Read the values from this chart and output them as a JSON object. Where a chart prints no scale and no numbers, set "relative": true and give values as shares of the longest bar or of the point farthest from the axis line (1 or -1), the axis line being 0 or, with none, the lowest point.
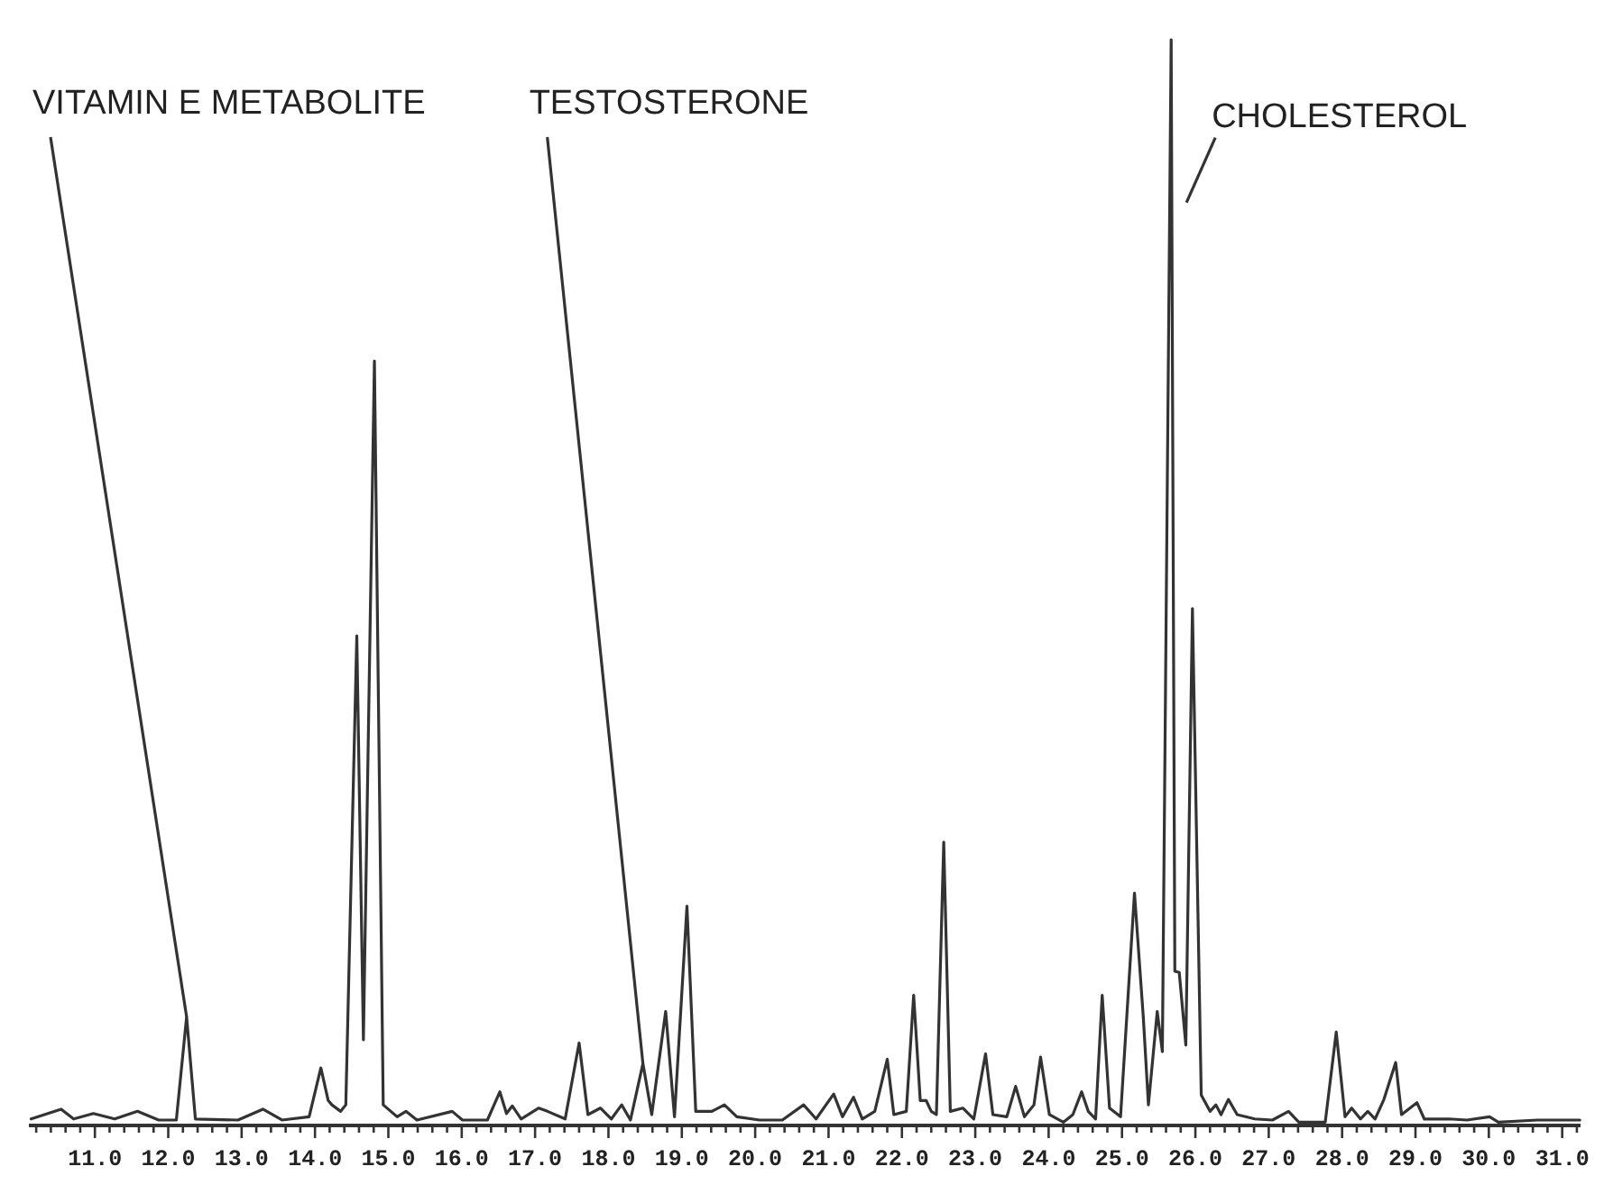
{
  "chart_data": {
    "type": "line",
    "relative": true,
    "grid": false,
    "marker": "none",
    "line_style": "solid",
    "xlim": [
      10.1,
      31.25
    ],
    "xticks": [
      {
        "value": 10.2,
        "label": null
      },
      {
        "value": 10.4,
        "label": null
      },
      {
        "value": 10.6,
        "label": null
      },
      {
        "value": 10.8,
        "label": null
      },
      {
        "value": 11,
        "label": "11.0"
      },
      {
        "value": 11.2,
        "label": null
      },
      {
        "value": 11.4,
        "label": null
      },
      {
        "value": 11.6,
        "label": null
      },
      {
        "value": 11.8,
        "label": null
      },
      {
        "value": 12,
        "label": "12.0"
      },
      {
        "value": 12.2,
        "label": null
      },
      {
        "value": 12.4,
        "label": null
      },
      {
        "value": 12.6,
        "label": null
      },
      {
        "value": 12.8,
        "label": null
      },
      {
        "value": 13,
        "label": "13.0"
      },
      {
        "value": 13.2,
        "label": null
      },
      {
        "value": 13.4,
        "label": null
      },
      {
        "value": 13.6,
        "label": null
      },
      {
        "value": 13.8,
        "label": null
      },
      {
        "value": 14,
        "label": "14.0"
      },
      {
        "value": 14.2,
        "label": null
      },
      {
        "value": 14.4,
        "label": null
      },
      {
        "value": 14.6,
        "label": null
      },
      {
        "value": 14.8,
        "label": null
      },
      {
        "value": 15,
        "label": "15.0"
      },
      {
        "value": 15.2,
        "label": null
      },
      {
        "value": 15.4,
        "label": null
      },
      {
        "value": 15.6,
        "label": null
      },
      {
        "value": 15.8,
        "label": null
      },
      {
        "value": 16,
        "label": "16.0"
      },
      {
        "value": 16.2,
        "label": null
      },
      {
        "value": 16.4,
        "label": null
      },
      {
        "value": 16.6,
        "label": null
      },
      {
        "value": 16.8,
        "label": null
      },
      {
        "value": 17,
        "label": "17.0"
      },
      {
        "value": 17.2,
        "label": null
      },
      {
        "value": 17.4,
        "label": null
      },
      {
        "value": 17.6,
        "label": null
      },
      {
        "value": 17.8,
        "label": null
      },
      {
        "value": 18,
        "label": "18.0"
      },
      {
        "value": 18.2,
        "label": null
      },
      {
        "value": 18.4,
        "label": null
      },
      {
        "value": 18.6,
        "label": null
      },
      {
        "value": 18.8,
        "label": null
      },
      {
        "value": 19,
        "label": "19.0"
      },
      {
        "value": 19.2,
        "label": null
      },
      {
        "value": 19.4,
        "label": null
      },
      {
        "value": 19.6,
        "label": null
      },
      {
        "value": 19.8,
        "label": null
      },
      {
        "value": 20,
        "label": "20.0"
      },
      {
        "value": 20.2,
        "label": null
      },
      {
        "value": 20.4,
        "label": null
      },
      {
        "value": 20.6,
        "label": null
      },
      {
        "value": 20.8,
        "label": null
      },
      {
        "value": 21,
        "label": "21.0"
      },
      {
        "value": 21.2,
        "label": null
      },
      {
        "value": 21.4,
        "label": null
      },
      {
        "value": 21.6,
        "label": null
      },
      {
        "value": 21.8,
        "label": null
      },
      {
        "value": 22,
        "label": "22.0"
      },
      {
        "value": 22.2,
        "label": null
      },
      {
        "value": 22.4,
        "label": null
      },
      {
        "value": 22.6,
        "label": null
      },
      {
        "value": 22.8,
        "label": null
      },
      {
        "value": 23,
        "label": "23.0"
      },
      {
        "value": 23.2,
        "label": null
      },
      {
        "value": 23.4,
        "label": null
      },
      {
        "value": 23.6,
        "label": null
      },
      {
        "value": 23.8,
        "label": null
      },
      {
        "value": 24,
        "label": "24.0"
      },
      {
        "value": 24.2,
        "label": null
      },
      {
        "value": 24.4,
        "label": null
      },
      {
        "value": 24.6,
        "label": null
      },
      {
        "value": 24.8,
        "label": null
      },
      {
        "value": 25,
        "label": "25.0"
      },
      {
        "value": 25.2,
        "label": null
      },
      {
        "value": 25.4,
        "label": null
      },
      {
        "value": 25.6,
        "label": null
      },
      {
        "value": 25.8,
        "label": null
      },
      {
        "value": 26,
        "label": "26.0"
      },
      {
        "value": 26.2,
        "label": null
      },
      {
        "value": 26.4,
        "label": null
      },
      {
        "value": 26.6,
        "label": null
      },
      {
        "value": 26.8,
        "label": null
      },
      {
        "value": 27,
        "label": "27.0"
      },
      {
        "value": 27.2,
        "label": null
      },
      {
        "value": 27.4,
        "label": null
      },
      {
        "value": 27.6,
        "label": null
      },
      {
        "value": 27.8,
        "label": null
      },
      {
        "value": 28,
        "label": "28.0"
      },
      {
        "value": 28.2,
        "label": null
      },
      {
        "value": 28.4,
        "label": null
      },
      {
        "value": 28.6,
        "label": null
      },
      {
        "value": 28.8,
        "label": null
      },
      {
        "value": 29,
        "label": "29.0"
      },
      {
        "value": 29.2,
        "label": null
      },
      {
        "value": 29.4,
        "label": null
      },
      {
        "value": 29.6,
        "label": null
      },
      {
        "value": 29.8,
        "label": null
      },
      {
        "value": 30,
        "label": "30.0"
      },
      {
        "value": 30.2,
        "label": null
      },
      {
        "value": 30.4,
        "label": null
      },
      {
        "value": 30.6,
        "label": null
      },
      {
        "value": 30.8,
        "label": null
      },
      {
        "value": 31,
        "label": "31.0"
      },
      {
        "value": 31.2,
        "label": null
      }
    ],
    "x": [
      10.13,
      10.54,
      10.71,
      10.98,
      11.27,
      11.58,
      11.87,
      12.11,
      12.25,
      12.37,
      12.95,
      13.29,
      13.55,
      13.92,
      14.08,
      14.18,
      14.23,
      14.35,
      14.42,
      14.57,
      14.66,
      14.81,
      14.93,
      15.12,
      15.24,
      15.39,
      15.87,
      16.01,
      16.35,
      16.52,
      16.61,
      16.69,
      16.81,
      17.05,
      17.17,
      17.41,
      17.6,
      17.72,
      17.89,
      18.04,
      18.18,
      18.3,
      18.47,
      18.59,
      18.78,
      18.9,
      19.07,
      19.19,
      19.41,
      19.58,
      19.75,
      20.06,
      20.37,
      20.66,
      20.83,
      21.07,
      21.19,
      21.34,
      21.46,
      21.63,
      21.8,
      21.89,
      22.06,
      22.16,
      22.25,
      22.33,
      22.4,
      22.47,
      22.57,
      22.66,
      22.83,
      22.98,
      23.14,
      23.24,
      23.43,
      23.55,
      23.67,
      23.8,
      23.89,
      24.01,
      24.2,
      24.33,
      24.45,
      24.54,
      24.64,
      24.73,
      24.83,
      24.98,
      25.17,
      25.29,
      25.36,
      25.48,
      25.55,
      25.67,
      25.72,
      25.78,
      25.87,
      25.96,
      26.08,
      26.2,
      26.28,
      26.35,
      26.45,
      26.57,
      26.81,
      27.05,
      27.27,
      27.41,
      27.77,
      27.92,
      28.04,
      28.13,
      28.25,
      28.35,
      28.45,
      28.57,
      28.73,
      28.81,
      29.02,
      29.12,
      29.46,
      29.7,
      30.01,
      30.13,
      30.66,
      31.24
    ],
    "series": [
      {
        "color": "#333333",
        "values": [
          0.006,
          0.015,
          0.006,
          0.011,
          0.006,
          0.013,
          0.005,
          0.005,
          0.1,
          0.006,
          0.005,
          0.015,
          0.005,
          0.008,
          0.053,
          0.023,
          0.019,
          0.013,
          0.019,
          0.451,
          0.079,
          0.704,
          0.019,
          0.008,
          0.013,
          0.005,
          0.013,
          0.005,
          0.005,
          0.031,
          0.011,
          0.018,
          0.006,
          0.016,
          0.013,
          0.006,
          0.076,
          0.01,
          0.016,
          0.006,
          0.019,
          0.005,
          0.057,
          0.01,
          0.105,
          0.008,
          0.202,
          0.013,
          0.013,
          0.019,
          0.008,
          0.005,
          0.005,
          0.019,
          0.006,
          0.029,
          0.008,
          0.026,
          0.006,
          0.013,
          0.061,
          0.01,
          0.013,
          0.12,
          0.023,
          0.023,
          0.013,
          0.01,
          0.261,
          0.013,
          0.016,
          0.006,
          0.066,
          0.01,
          0.008,
          0.036,
          0.008,
          0.019,
          0.063,
          0.01,
          0.003,
          0.01,
          0.031,
          0.013,
          0.006,
          0.12,
          0.016,
          0.008,
          0.214,
          0.1,
          0.019,
          0.105,
          0.068,
          1,
          0.142,
          0.141,
          0.074,
          0.476,
          0.028,
          0.013,
          0.019,
          0.01,
          0.024,
          0.01,
          0.006,
          0.005,
          0.013,
          0.003,
          0.003,
          0.086,
          0.008,
          0.016,
          0.006,
          0.013,
          0.006,
          0.024,
          0.058,
          0.01,
          0.021,
          0.006,
          0.006,
          0.005,
          0.008,
          0.003,
          0.005,
          0.005
        ]
      }
    ],
    "annotations": [
      {
        "text": "VITAMIN E METABOLITE",
        "x": 12.25,
        "y": 0.1
      },
      {
        "text": "TESTOSTERONE",
        "x": 18.47,
        "y": 0.057
      },
      {
        "text": "CHOLESTEROL",
        "x": 25.78,
        "y": 0.85
      }
    ]
  }
}
